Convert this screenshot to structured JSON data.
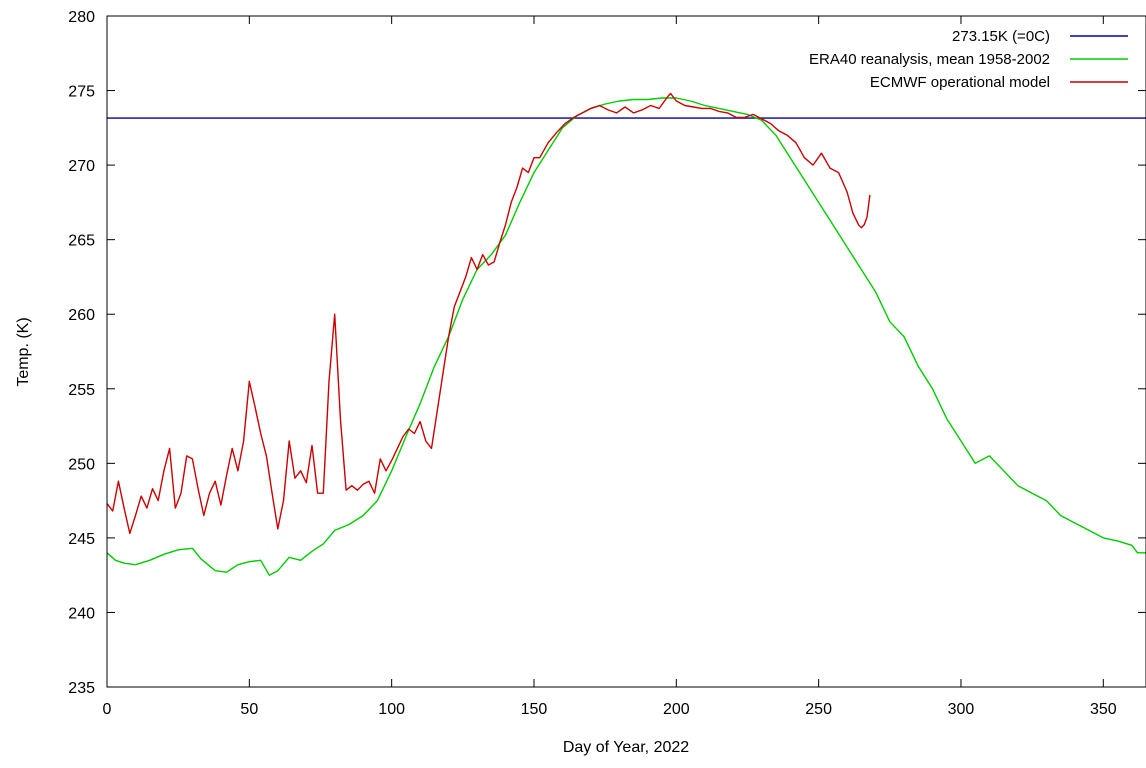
{
  "chart_data": {
    "type": "line",
    "title": "",
    "xlabel": "Day of Year, 2022",
    "ylabel": "Temp. (K)",
    "xlim": [
      0,
      365
    ],
    "ylim": [
      235,
      280
    ],
    "x_ticks": [
      0,
      50,
      100,
      150,
      200,
      250,
      300,
      350
    ],
    "y_ticks": [
      235,
      240,
      245,
      250,
      255,
      260,
      265,
      270,
      275,
      280
    ],
    "grid": false,
    "legend_position": "top-right",
    "series": [
      {
        "name": "273.15K (=0C)",
        "color": "#0000a0",
        "x": [
          0,
          365
        ],
        "y": [
          273.15,
          273.15
        ]
      },
      {
        "name": "ERA40 reanalysis, mean 1958-2002",
        "color": "#00cc00",
        "x": [
          0,
          3,
          6,
          10,
          15,
          20,
          25,
          30,
          33,
          38,
          42,
          46,
          50,
          54,
          57,
          60,
          64,
          68,
          72,
          76,
          80,
          85,
          90,
          95,
          100,
          105,
          110,
          115,
          120,
          125,
          130,
          135,
          140,
          145,
          150,
          155,
          160,
          165,
          170,
          175,
          180,
          185,
          190,
          195,
          200,
          205,
          210,
          215,
          220,
          225,
          230,
          235,
          240,
          245,
          250,
          255,
          260,
          265,
          270,
          275,
          280,
          285,
          290,
          295,
          300,
          305,
          310,
          315,
          320,
          325,
          330,
          335,
          340,
          345,
          350,
          355,
          360,
          362,
          365
        ],
        "y": [
          244.0,
          243.5,
          243.3,
          243.2,
          243.5,
          243.9,
          244.2,
          244.3,
          243.6,
          242.8,
          242.7,
          243.2,
          243.4,
          243.5,
          242.5,
          242.8,
          243.7,
          243.5,
          244.1,
          244.6,
          245.5,
          245.9,
          246.5,
          247.5,
          249.5,
          251.8,
          254.0,
          256.5,
          258.5,
          261.0,
          263.0,
          264.0,
          265.3,
          267.5,
          269.5,
          271.0,
          272.5,
          273.3,
          273.8,
          274.1,
          274.3,
          274.4,
          274.4,
          274.5,
          274.5,
          274.3,
          274.0,
          273.8,
          273.6,
          273.4,
          273.0,
          272.0,
          270.5,
          269.0,
          267.5,
          266.0,
          264.5,
          263.0,
          261.5,
          259.5,
          258.5,
          256.5,
          255.0,
          253.0,
          251.5,
          250.0,
          250.5,
          249.5,
          248.5,
          248.0,
          247.5,
          246.5,
          246.0,
          245.5,
          245.0,
          244.8,
          244.5,
          244.0,
          244.0
        ]
      },
      {
        "name": "ECMWF operational model",
        "color": "#cc0000",
        "x": [
          0,
          2,
          4,
          6,
          8,
          10,
          12,
          14,
          16,
          18,
          20,
          22,
          24,
          26,
          28,
          30,
          32,
          34,
          36,
          38,
          40,
          42,
          44,
          46,
          48,
          50,
          52,
          54,
          56,
          58,
          60,
          62,
          64,
          66,
          68,
          70,
          72,
          74,
          76,
          78,
          80,
          82,
          84,
          86,
          88,
          90,
          92,
          94,
          96,
          98,
          100,
          102,
          104,
          106,
          108,
          110,
          112,
          114,
          116,
          118,
          120,
          122,
          124,
          126,
          128,
          130,
          132,
          134,
          136,
          138,
          140,
          142,
          144,
          146,
          148,
          150,
          152,
          155,
          158,
          161,
          164,
          167,
          170,
          173,
          176,
          179,
          182,
          185,
          188,
          191,
          194,
          197,
          198,
          200,
          203,
          206,
          209,
          212,
          215,
          218,
          221,
          224,
          227,
          230,
          233,
          236,
          239,
          242,
          245,
          248,
          251,
          254,
          257,
          260,
          262,
          264,
          265,
          266,
          267,
          268
        ],
        "y": [
          247.3,
          246.8,
          248.8,
          247.0,
          245.3,
          246.5,
          247.8,
          247.0,
          248.3,
          247.5,
          249.5,
          251.0,
          247.0,
          248.0,
          250.5,
          250.3,
          248.3,
          246.5,
          248.0,
          248.8,
          247.2,
          249.2,
          251.0,
          249.5,
          251.5,
          255.5,
          253.8,
          252.0,
          250.5,
          248.0,
          245.6,
          247.5,
          251.5,
          249.0,
          249.5,
          248.7,
          251.2,
          248.0,
          248.0,
          255.5,
          260.0,
          253.0,
          248.2,
          248.5,
          248.2,
          248.6,
          248.8,
          248.0,
          250.3,
          249.5,
          250.2,
          251.0,
          251.8,
          252.3,
          252.0,
          252.8,
          251.5,
          251.0,
          253.5,
          256.0,
          258.5,
          260.5,
          261.5,
          262.5,
          263.8,
          263.0,
          264.0,
          263.3,
          263.5,
          264.8,
          266.0,
          267.5,
          268.5,
          269.8,
          269.5,
          270.5,
          270.5,
          271.5,
          272.2,
          272.8,
          273.2,
          273.5,
          273.8,
          274.0,
          273.7,
          273.5,
          273.9,
          273.5,
          273.7,
          274.0,
          273.8,
          274.6,
          274.8,
          274.3,
          274.0,
          273.9,
          273.8,
          273.8,
          273.6,
          273.5,
          273.2,
          273.2,
          273.4,
          273.1,
          272.8,
          272.3,
          272.0,
          271.5,
          270.5,
          270.0,
          270.8,
          269.8,
          269.5,
          268.2,
          266.8,
          266.0,
          265.8,
          266.0,
          266.5,
          268.0
        ]
      }
    ]
  }
}
